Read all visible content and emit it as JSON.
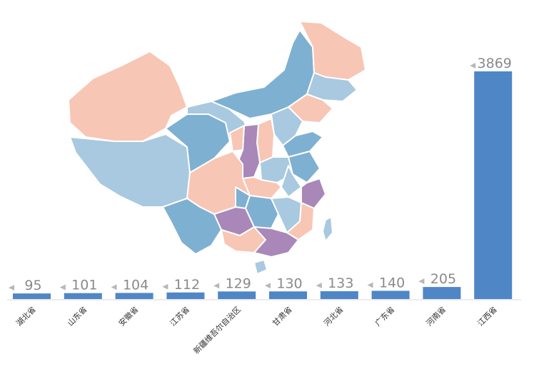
{
  "chart_data": {
    "type": "bar",
    "categories": [
      "湖北省",
      "山东省",
      "安徽省",
      "江苏省",
      "新疆维吾尔自治区",
      "甘肃省",
      "河北省",
      "广东省",
      "河南省",
      "江西省"
    ],
    "values": [
      95,
      101,
      104,
      112,
      129,
      130,
      133,
      140,
      205,
      3869
    ],
    "ylim": [
      0,
      3869
    ],
    "grid": false,
    "legend": "none",
    "colors": {
      "bar": "#4f86c6",
      "label_marker": "#b8b8b8"
    }
  },
  "map_palette": {
    "pink": "#f8c6b4",
    "dark_blue": "#7eb0d1",
    "light_blue": "#a8c9e0",
    "purple": "#a987b8",
    "outline": "#ffffff"
  }
}
